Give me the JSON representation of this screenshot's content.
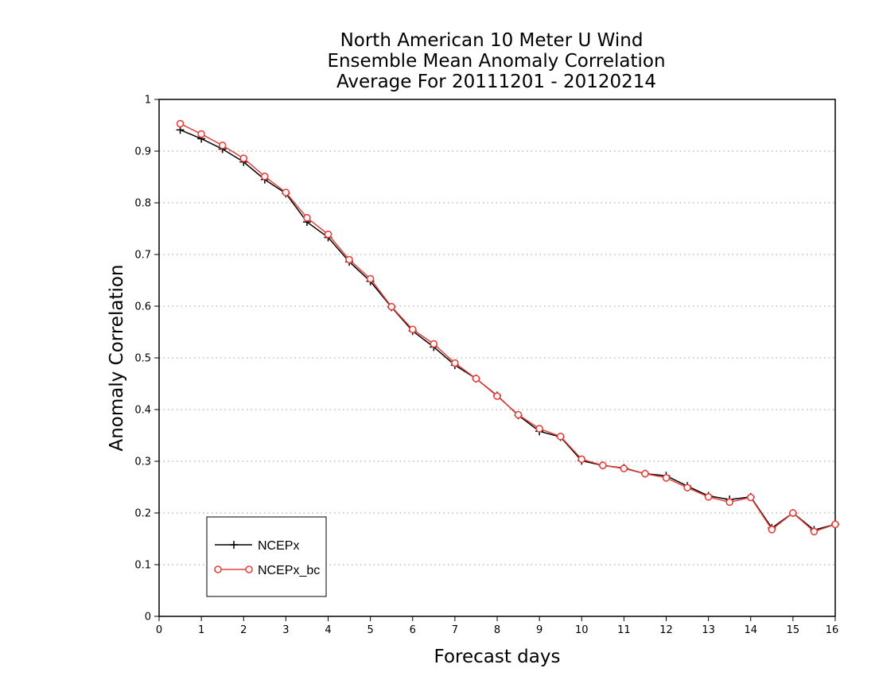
{
  "chart_data": {
    "type": "line",
    "title": [
      "North American 10 Meter U Wind",
      "Ensemble Mean Anomaly Correlation",
      "Average For 20111201 - 20120214"
    ],
    "xlabel": "Forecast days",
    "ylabel": "Anomaly Correlation",
    "xlim": [
      0,
      16
    ],
    "ylim": [
      0,
      1
    ],
    "xticks": [
      0,
      1,
      2,
      3,
      4,
      5,
      6,
      7,
      8,
      9,
      10,
      11,
      12,
      13,
      14,
      15,
      16
    ],
    "xtick_labels": [
      "0",
      "1",
      "2",
      "3",
      "4",
      "5",
      "6",
      "7",
      "8",
      "9",
      "10",
      "11",
      "12",
      "13",
      "14",
      "15",
      "16"
    ],
    "yticks": [
      0,
      0.1,
      0.2,
      0.3,
      0.4,
      0.5,
      0.6,
      0.7,
      0.8,
      0.9,
      1
    ],
    "ytick_labels": [
      "0",
      "0.1",
      "0.2",
      "0.3",
      "0.4",
      "0.5",
      "0.6",
      "0.7",
      "0.8",
      "0.9",
      "1"
    ],
    "grid": "horizontal dotted",
    "legend_position": "bottom-left",
    "x": [
      0.5,
      1,
      1.5,
      2,
      2.5,
      3,
      3.5,
      4,
      4.5,
      5,
      5.5,
      6,
      6.5,
      7,
      7.5,
      8,
      8.5,
      9,
      9.5,
      10,
      10.5,
      11,
      11.5,
      12,
      12.5,
      13,
      13.5,
      14,
      14.5,
      15,
      15.5,
      16
    ],
    "series": [
      {
        "name": "NCEPx",
        "color": "#000000",
        "marker": "plus",
        "values": [
          0.941,
          0.924,
          0.904,
          0.879,
          0.845,
          0.818,
          0.763,
          0.733,
          0.686,
          0.648,
          0.598,
          0.552,
          0.521,
          0.486,
          0.46,
          0.427,
          0.389,
          0.358,
          0.347,
          0.301,
          0.292,
          0.287,
          0.276,
          0.272,
          0.252,
          0.233,
          0.226,
          0.231,
          0.171,
          0.2,
          0.167,
          0.178
        ]
      },
      {
        "name": "NCEPx_bc",
        "color": "#e8403a",
        "marker": "circle",
        "values": [
          0.953,
          0.933,
          0.911,
          0.886,
          0.851,
          0.82,
          0.771,
          0.739,
          0.69,
          0.653,
          0.599,
          0.555,
          0.527,
          0.49,
          0.46,
          0.426,
          0.39,
          0.363,
          0.348,
          0.304,
          0.292,
          0.286,
          0.276,
          0.268,
          0.249,
          0.231,
          0.221,
          0.23,
          0.168,
          0.2,
          0.164,
          0.178
        ]
      }
    ]
  }
}
